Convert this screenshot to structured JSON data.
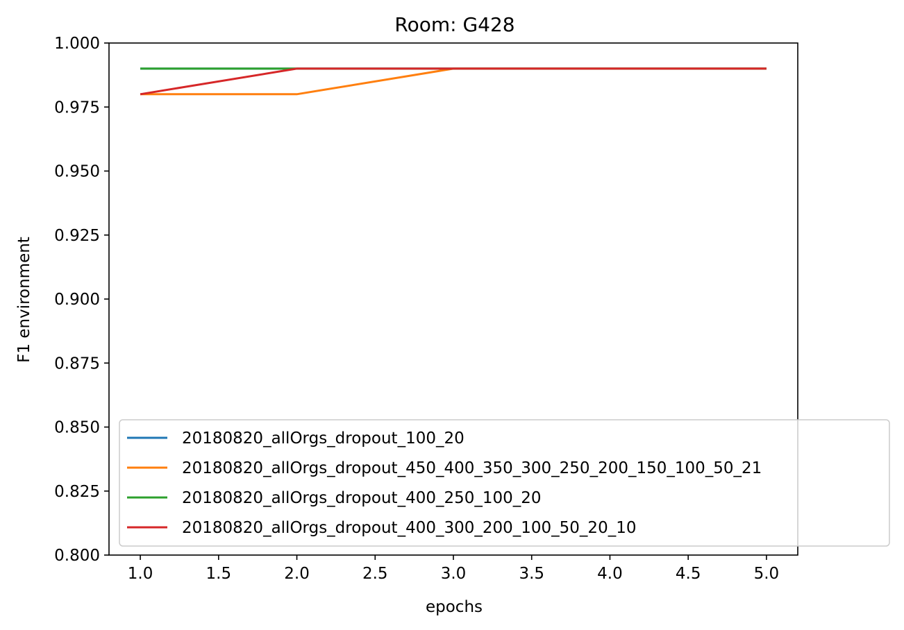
{
  "chart_data": {
    "type": "line",
    "title": "Room: G428",
    "xlabel": "epochs",
    "ylabel": "F1 environment",
    "xlim": [
      0.8,
      5.2
    ],
    "ylim": [
      0.8,
      1.0
    ],
    "xticks": [
      "1.0",
      "1.5",
      "2.0",
      "2.5",
      "3.0",
      "3.5",
      "4.0",
      "4.5",
      "5.0"
    ],
    "yticks": [
      "0.800",
      "0.825",
      "0.850",
      "0.875",
      "0.900",
      "0.925",
      "0.950",
      "0.975",
      "1.000"
    ],
    "grid": false,
    "legend_position": "lower-right",
    "x": [
      1,
      2,
      3,
      4,
      5
    ],
    "series": [
      {
        "name": "20180820_allOrgs_dropout_100_20",
        "color": "#1f77b4",
        "values": [
          0.99,
          0.99,
          0.99,
          0.99,
          0.99
        ]
      },
      {
        "name": "20180820_allOrgs_dropout_450_400_350_300_250_200_150_100_50_21",
        "color": "#ff7f0e",
        "values": [
          0.98,
          0.98,
          0.99,
          0.99,
          0.99
        ]
      },
      {
        "name": "20180820_allOrgs_dropout_400_250_100_20",
        "color": "#2ca02c",
        "values": [
          0.99,
          0.99,
          0.99,
          0.99,
          0.99
        ]
      },
      {
        "name": "20180820_allOrgs_dropout_400_300_200_100_50_20_10",
        "color": "#d62728",
        "values": [
          0.98,
          0.99,
          0.99,
          0.99,
          0.99
        ]
      }
    ]
  }
}
